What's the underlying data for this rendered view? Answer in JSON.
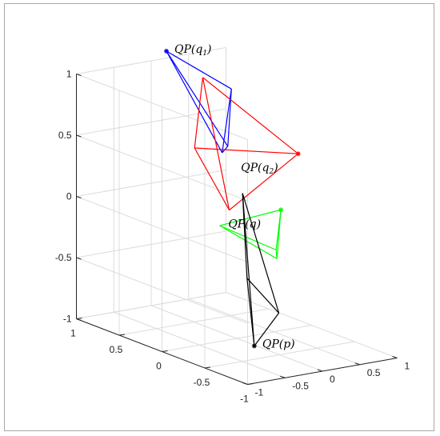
{
  "chart_data": {
    "type": "line3d",
    "title": "",
    "xlabel": "",
    "ylabel": "",
    "zlabel": "",
    "xlim": [
      -1,
      1
    ],
    "ylim": [
      -1,
      1
    ],
    "zlim": [
      -1,
      1
    ],
    "grid": true,
    "box": true,
    "ticks": {
      "x": [
        "1",
        "0.5",
        "0",
        "-0.5",
        "-1"
      ],
      "y": [
        "1",
        "0.5",
        "0",
        "-0.5",
        "-1"
      ],
      "z": [
        "1",
        "0.5",
        "0",
        "-0.5",
        "-1"
      ]
    },
    "series": [
      {
        "color": "#0000ff",
        "marker_point": [
          0.02,
          0.84,
          1.12
        ],
        "edges": [
          [
            [
              0.02,
              0.84,
              1.12
            ],
            [
              0.5,
              0.5,
              0.85
            ]
          ],
          [
            [
              0.02,
              0.84,
              1.12
            ],
            [
              0.12,
              0.21,
              0.5
            ]
          ],
          [
            [
              0.02,
              0.84,
              1.12
            ],
            [
              0.09,
              0.25,
              0.44
            ]
          ],
          [
            [
              0.5,
              0.5,
              0.85
            ],
            [
              0.12,
              0.21,
              0.5
            ]
          ],
          [
            [
              0.5,
              0.5,
              0.85
            ],
            [
              0.09,
              0.25,
              0.44
            ]
          ],
          [
            [
              0.12,
              0.21,
              0.5
            ],
            [
              0.09,
              0.25,
              0.44
            ]
          ]
        ]
      },
      {
        "color": "#ff0000",
        "marker_point": [
          0.82,
          0.0,
          0.42
        ],
        "edges": [
          [
            [
              0.82,
              0.0,
              0.42
            ],
            [
              0.22,
              0.59,
              0.95
            ]
          ],
          [
            [
              0.82,
              0.0,
              0.42
            ],
            [
              -0.37,
              0.17,
              0.55
            ]
          ],
          [
            [
              0.82,
              0.0,
              0.42
            ],
            [
              0.54,
              0.56,
              -0.16
            ]
          ],
          [
            [
              0.22,
              0.59,
              0.95
            ],
            [
              -0.37,
              0.17,
              0.55
            ]
          ],
          [
            [
              0.22,
              0.59,
              0.95
            ],
            [
              0.54,
              0.56,
              -0.16
            ]
          ],
          [
            [
              -0.37,
              0.17,
              0.55
            ],
            [
              0.54,
              0.56,
              -0.16
            ]
          ]
        ]
      },
      {
        "color": "#00ff00",
        "marker_point": [
          0.99,
          0.35,
          -0.15
        ],
        "edges": [
          [
            [
              0.99,
              0.35,
              -0.15
            ],
            [
              -0.24,
              -0.01,
              -0.05
            ]
          ],
          [
            [
              0.99,
              0.35,
              -0.15
            ],
            [
              -0.07,
              -0.52,
              -0.13
            ]
          ],
          [
            [
              0.99,
              0.35,
              -0.15
            ],
            [
              -0.39,
              -0.81,
              -0.09
            ]
          ],
          [
            [
              -0.24,
              -0.01,
              -0.05
            ],
            [
              -0.07,
              -0.52,
              -0.13
            ]
          ],
          [
            [
              -0.24,
              -0.01,
              -0.05
            ],
            [
              -0.39,
              -0.81,
              -0.09
            ]
          ],
          [
            [
              -0.07,
              -0.52,
              -0.13
            ],
            [
              -0.39,
              -0.81,
              -0.09
            ]
          ]
        ]
      },
      {
        "color": "#000000",
        "marker_point": [
          -0.43,
          -0.58,
          -0.86
        ],
        "edges": [
          [
            [
              -0.43,
              -0.58,
              -0.86
            ],
            [
              0.42,
              0.3,
              0.06
            ]
          ],
          [
            [
              -0.43,
              -0.58,
              -0.86
            ],
            [
              -0.31,
              -0.39,
              -0.37
            ]
          ],
          [
            [
              -0.43,
              -0.58,
              -0.86
            ],
            [
              -0.09,
              -0.57,
              -0.63
            ]
          ],
          [
            [
              0.42,
              0.3,
              0.06
            ],
            [
              -0.31,
              -0.39,
              -0.37
            ]
          ],
          [
            [
              0.42,
              0.3,
              0.06
            ],
            [
              -0.09,
              -0.57,
              -0.63
            ]
          ],
          [
            [
              -0.31,
              -0.39,
              -0.37
            ],
            [
              -0.09,
              -0.57,
              -0.63
            ]
          ]
        ]
      }
    ],
    "annotations": [
      {
        "text": "QP(q",
        "sub": "1",
        "close": ")",
        "anchor": [
          0.02,
          0.84,
          1.12
        ],
        "side": "right"
      },
      {
        "text": "QP(q",
        "sub": "2",
        "close": ")",
        "anchor": [
          0.82,
          0.0,
          0.42
        ],
        "side": "left"
      },
      {
        "text": "QP(q",
        "sub": "",
        "close": ")",
        "anchor": [
          0.99,
          0.35,
          -0.15
        ],
        "side": "left"
      },
      {
        "text": "QP(p",
        "sub": "",
        "close": ")",
        "anchor": [
          -0.43,
          -0.58,
          -0.86
        ],
        "side": "right"
      }
    ]
  }
}
